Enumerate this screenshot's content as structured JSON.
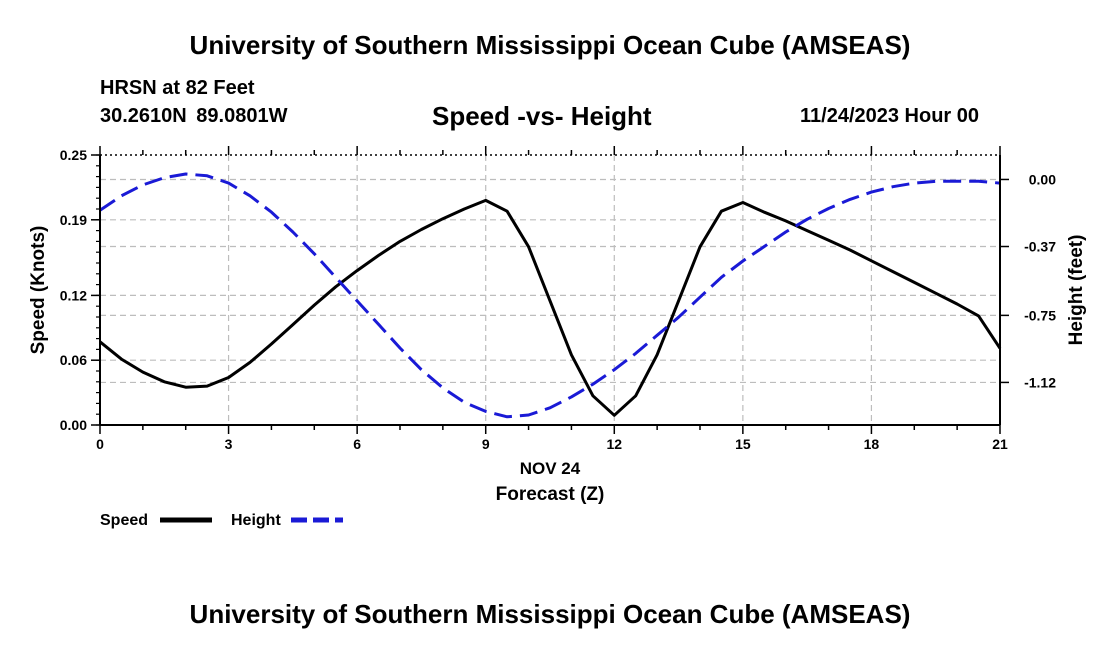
{
  "header": {
    "title": "University of Southern Mississippi Ocean Cube (AMSEAS)",
    "station": "HRSN at 82 Feet",
    "coords": "30.2610N  89.0801W",
    "chart_title": "Speed -vs- Height",
    "forecast_time": "11/24/2023 Hour 00"
  },
  "footer": {
    "title": "University of Southern Mississippi Ocean Cube (AMSEAS)"
  },
  "colors": {
    "speed": "#000000",
    "height": "#1a1ad6",
    "grid": "#bdbdbd"
  },
  "chart_data": {
    "type": "line",
    "title": "Speed -vs- Height",
    "xlabel": "Forecast (Z)",
    "xlabel_date": "NOV 24",
    "ylabel": "Speed (Knots)",
    "y2label": "Height (feet)",
    "xlim": [
      0,
      21
    ],
    "ylim": [
      0,
      0.25
    ],
    "y2lim": [
      -1.355,
      0.135
    ],
    "x_ticks": [
      0,
      3,
      6,
      9,
      12,
      15,
      18,
      21
    ],
    "y_ticks": [
      0.0,
      0.06,
      0.12,
      0.19,
      0.25
    ],
    "y_tick_labels": [
      "0.00",
      "0.06",
      "0.12",
      "0.19",
      "0.25"
    ],
    "y2_ticks": [
      0.0,
      -0.37,
      -0.75,
      -1.12
    ],
    "y2_tick_labels": [
      "0.00",
      "-0.37",
      "-0.75",
      "-1.12"
    ],
    "grid": true,
    "legend": "bottom-left",
    "series": [
      {
        "name": "Speed",
        "axis": "left",
        "style": "solid",
        "x": [
          0,
          0.5,
          1,
          1.5,
          2,
          2.5,
          3,
          3.5,
          4,
          4.5,
          5,
          5.5,
          6,
          6.5,
          7,
          7.5,
          8,
          8.5,
          9,
          9.5,
          10,
          10.5,
          11,
          11.5,
          12,
          12.5,
          13,
          13.5,
          14,
          14.5,
          15,
          15.5,
          16,
          16.5,
          17,
          17.5,
          18,
          18.5,
          19,
          19.5,
          20,
          20.5,
          21
        ],
        "values": [
          0.077,
          0.061,
          0.049,
          0.04,
          0.035,
          0.036,
          0.044,
          0.058,
          0.075,
          0.093,
          0.111,
          0.128,
          0.143,
          0.157,
          0.17,
          0.181,
          0.191,
          0.2,
          0.208,
          0.198,
          0.165,
          0.115,
          0.065,
          0.027,
          0.009,
          0.027,
          0.065,
          0.115,
          0.165,
          0.198,
          0.206,
          0.197,
          0.189,
          0.18,
          0.171,
          0.162,
          0.152,
          0.142,
          0.132,
          0.122,
          0.112,
          0.101,
          0.071
        ]
      },
      {
        "name": "Height",
        "axis": "right",
        "style": "dashed",
        "x": [
          0,
          0.5,
          1,
          1.5,
          2,
          2.5,
          3,
          3.5,
          4,
          4.5,
          5,
          5.5,
          6,
          6.5,
          7,
          7.5,
          8,
          8.5,
          9,
          9.5,
          10,
          10.5,
          11,
          11.5,
          12,
          12.5,
          13,
          13.5,
          14,
          14.5,
          15,
          15.5,
          16,
          16.5,
          17,
          17.5,
          18,
          18.5,
          19,
          19.5,
          20,
          20.5,
          21
        ],
        "values": [
          -0.17,
          -0.09,
          -0.03,
          0.01,
          0.03,
          0.02,
          -0.02,
          -0.09,
          -0.18,
          -0.29,
          -0.41,
          -0.54,
          -0.67,
          -0.8,
          -0.93,
          -1.05,
          -1.15,
          -1.23,
          -1.28,
          -1.31,
          -1.3,
          -1.26,
          -1.2,
          -1.13,
          -1.05,
          -0.96,
          -0.86,
          -0.76,
          -0.65,
          -0.54,
          -0.45,
          -0.37,
          -0.29,
          -0.22,
          -0.16,
          -0.11,
          -0.07,
          -0.04,
          -0.02,
          -0.01,
          -0.01,
          -0.01,
          -0.02
        ]
      }
    ]
  }
}
